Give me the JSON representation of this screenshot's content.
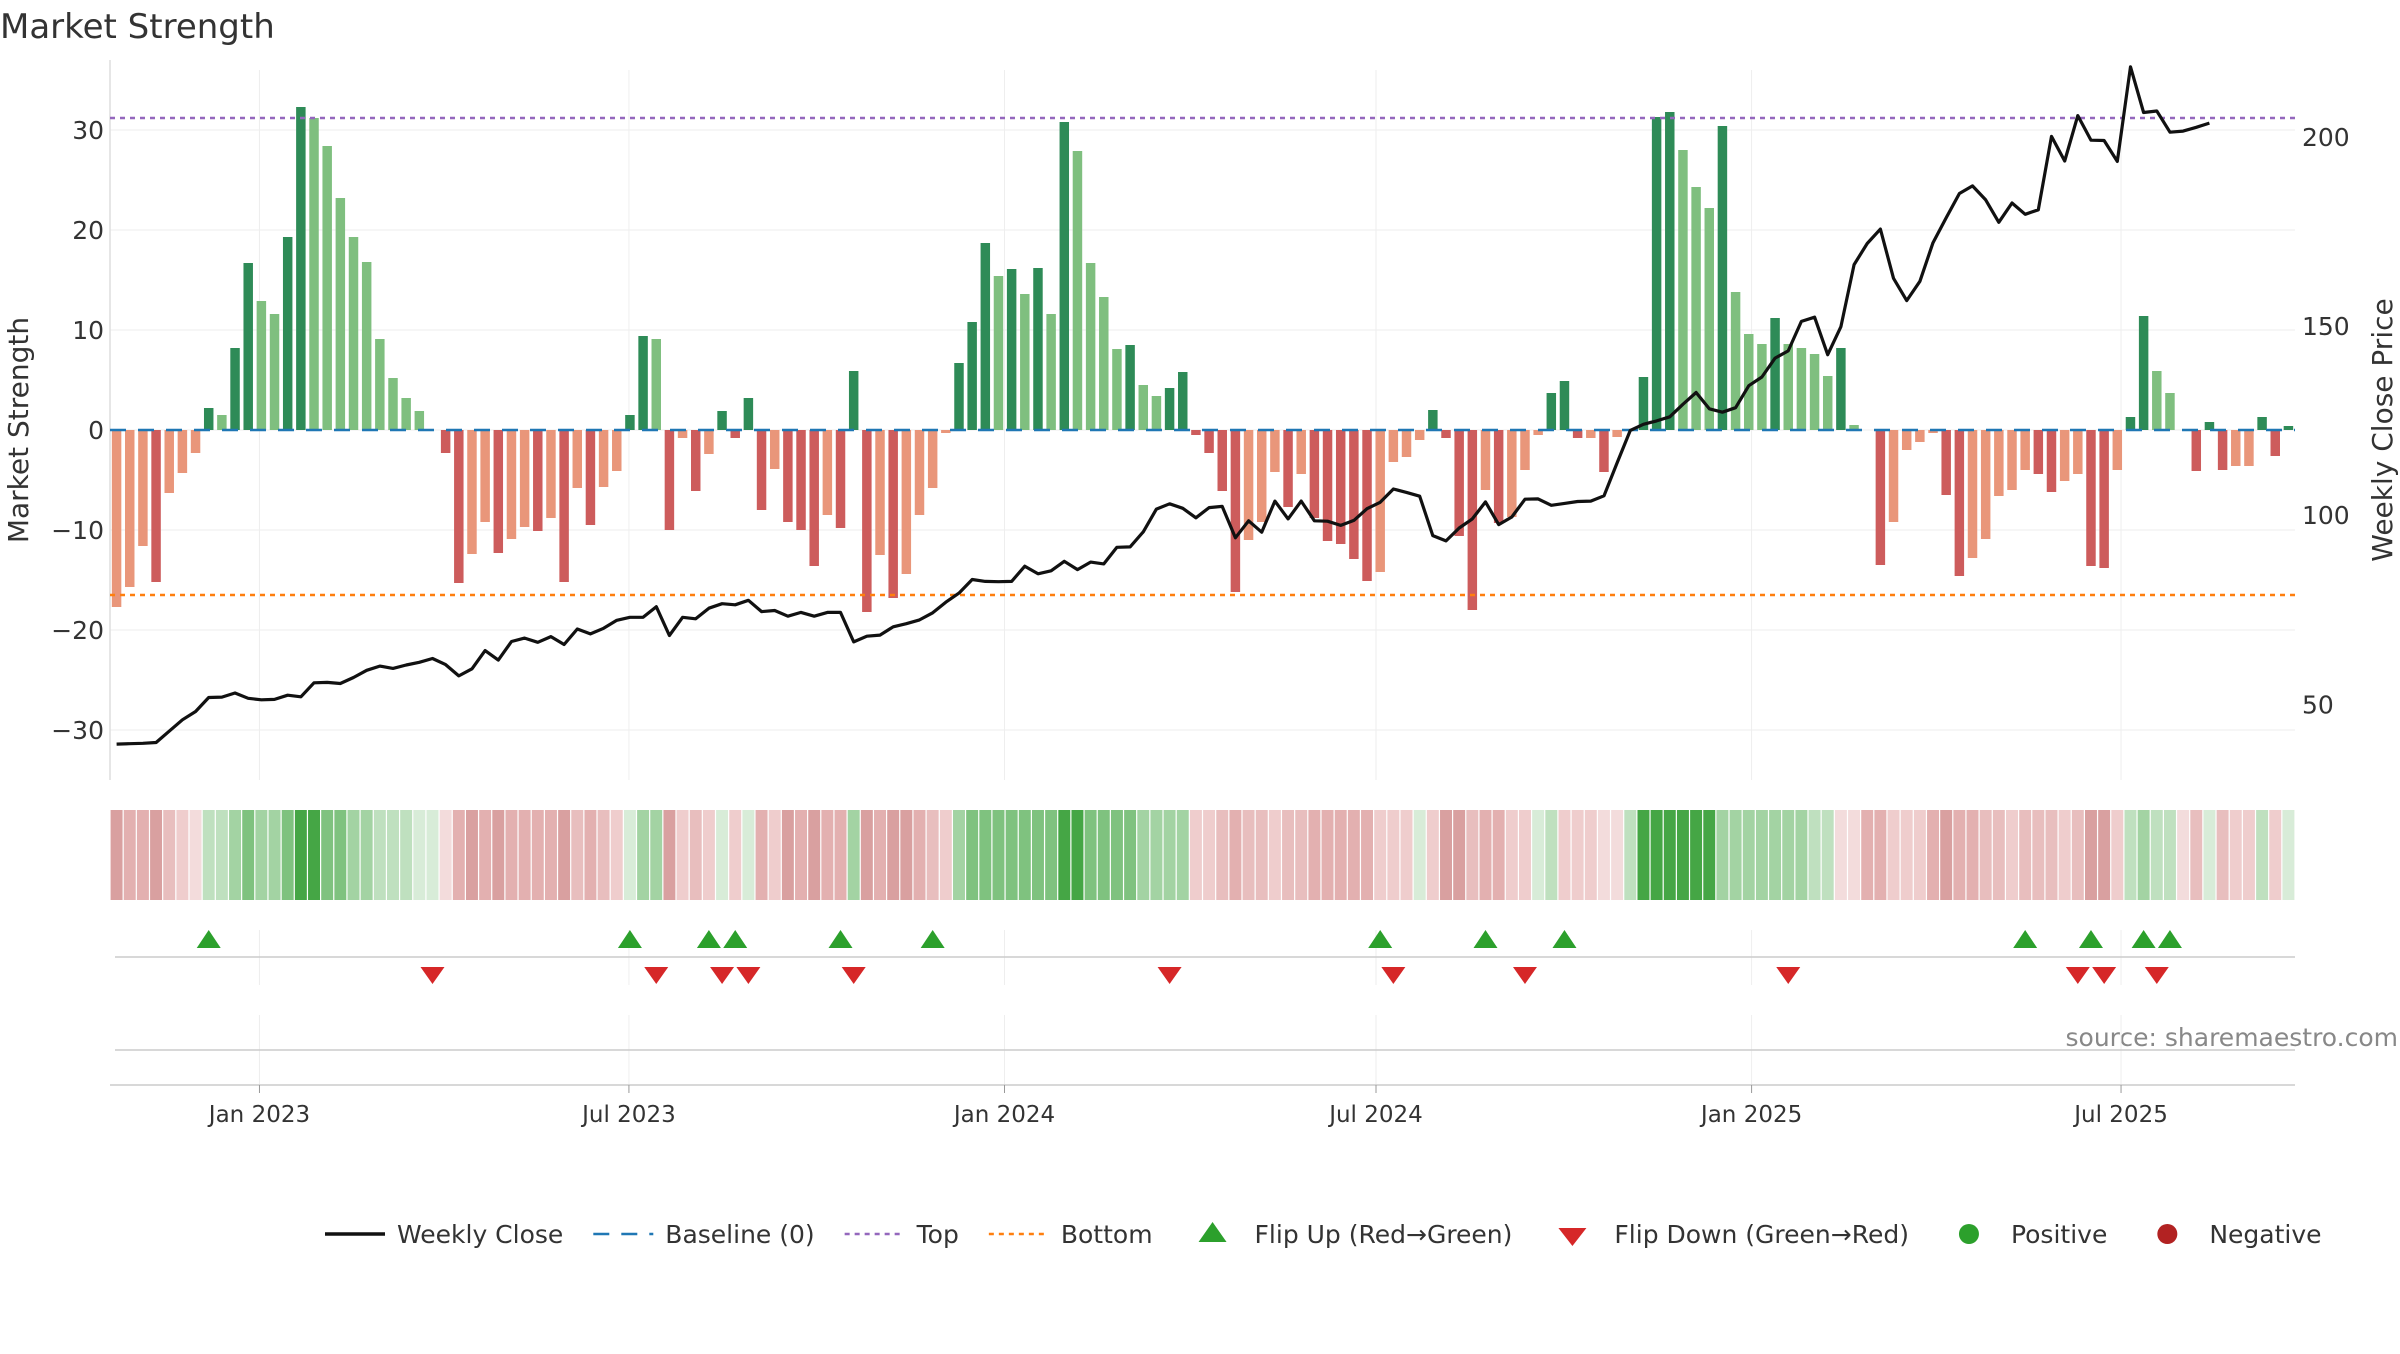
{
  "title": "Market Strength",
  "source": "source: sharemaestro.com",
  "chart_data": {
    "type": "bar",
    "title": "Market Strength",
    "ylabel_left": "Market Strength",
    "ylabel_right": "Weekly Close Price",
    "ylim_left": [
      -35,
      35
    ],
    "ylim_right": [
      30,
      215
    ],
    "yticks_left": [
      -30,
      -20,
      -10,
      0,
      10,
      20,
      30
    ],
    "yticks_right": [
      50,
      100,
      150,
      200
    ],
    "x_tick_labels": [
      "Jan 2023",
      "Jul 2023",
      "Jan 2024",
      "Jul 2024",
      "Jan 2025",
      "Jul 2025"
    ],
    "x_tick_dates": [
      "2023-01-01",
      "2023-07-01",
      "2024-01-01",
      "2024-07-01",
      "2025-01-01",
      "2025-07-01"
    ],
    "date_range": [
      "2022-10-23",
      "2025-09-21"
    ],
    "top_line": 31.2,
    "bottom_line": -16.5,
    "grid": true,
    "legend_position": "bottom",
    "colors": {
      "pos_strong": "#2e8b57",
      "pos_weak": "#7fbf7f",
      "neg_strong": "#cd5c5c",
      "neg_weak": "#e9967a",
      "close": "#111111",
      "baseline": "#1f77b4",
      "top": "#9467bd",
      "bottom": "#ff7f0e",
      "flip_up": "#2ca02c",
      "flip_down": "#d62728",
      "positive": "#2ca02c",
      "negative": "#b22222"
    },
    "strength": [
      -17.7,
      -15.7,
      -11.6,
      -15.2,
      -6.3,
      -4.3,
      -2.3,
      2.2,
      1.5,
      8.2,
      16.7,
      12.9,
      11.6,
      19.3,
      32.3,
      31.2,
      28.4,
      23.2,
      19.3,
      16.8,
      9.1,
      5.2,
      3.2,
      1.9,
      0,
      -2.3,
      -15.3,
      -12.4,
      -9.2,
      -12.3,
      -10.9,
      -9.7,
      -10.1,
      -8.8,
      -15.2,
      -5.8,
      -9.5,
      -5.7,
      -4.1,
      1.5,
      9.4,
      9.1,
      -10.0,
      -0.8,
      -6.1,
      -2.4,
      1.9,
      -0.8,
      3.2,
      -8.0,
      -3.9,
      -9.2,
      -10.0,
      -13.6,
      -8.5,
      -9.8,
      5.9,
      -18.2,
      -12.5,
      -16.8,
      -14.4,
      -8.5,
      -5.8,
      -0.3,
      6.7,
      10.8,
      18.7,
      15.4,
      16.1,
      13.6,
      16.2,
      11.6,
      30.8,
      27.9,
      16.7,
      13.3,
      8.1,
      8.5,
      4.5,
      3.4,
      4.2,
      5.8,
      -0.5,
      -2.3,
      -6.1,
      -16.2,
      -11.0,
      -9.2,
      -4.2,
      -7.7,
      -4.4,
      -8.8,
      -11.1,
      -11.4,
      -12.9,
      -15.1,
      -14.2,
      -3.2,
      -2.7,
      -1.0,
      2.0,
      -0.8,
      -10.6,
      -18.0,
      -6.0,
      -9.3,
      -8.7,
      -4.0,
      -0.5,
      3.7,
      4.9,
      -0.8,
      -0.8,
      -4.2,
      -0.7,
      0,
      5.3,
      31.3,
      31.8,
      28.0,
      24.3,
      22.2,
      30.4,
      13.8,
      9.6,
      8.6,
      11.2,
      8.6,
      8.2,
      7.6,
      5.4,
      8.2,
      0.5,
      0,
      -13.5,
      -9.2,
      -2.0,
      -1.2,
      -0.3,
      -6.5,
      -14.6,
      -12.8,
      -10.9,
      -6.6,
      -6.0,
      -4.0,
      -4.4,
      -6.2,
      -5.1,
      -4.4,
      -13.6,
      -13.8,
      -4.0,
      1.3,
      11.4,
      5.9,
      3.7,
      0,
      -4.1,
      0.8,
      -4.0,
      -3.6,
      -3.6,
      1.3,
      -2.6,
      0.4
    ],
    "weekly_close": [
      39.5,
      39.6,
      39.7,
      39.9,
      42.9,
      45.9,
      48.1,
      51.8,
      51.9,
      53.0,
      51.6,
      51.2,
      51.3,
      52.4,
      52.0,
      55.7,
      55.8,
      55.5,
      57.1,
      59.0,
      60.1,
      59.5,
      60.4,
      61.1,
      62.1,
      60.5,
      57.5,
      59.4,
      64.2,
      61.7,
      66.6,
      67.5,
      66.4,
      67.9,
      65.8,
      69.9,
      68.6,
      70.1,
      72.2,
      73.0,
      73.0,
      75.8,
      68.2,
      73.0,
      72.6,
      75.4,
      76.6,
      76.3,
      77.5,
      74.5,
      74.8,
      73.3,
      74.3,
      73.3,
      74.3,
      74.3,
      66.5,
      68.0,
      68.3,
      70.5,
      71.3,
      72.3,
      74.2,
      77.0,
      79.4,
      83.0,
      82.5,
      82.4,
      82.5,
      86.5,
      84.5,
      85.3,
      87.8,
      85.6,
      87.6,
      87.1,
      91.5,
      91.6,
      95.6,
      101.6,
      103.0,
      101.8,
      99.3,
      102.0,
      102.3,
      94.0,
      98.5,
      95.5,
      103.7,
      99.0,
      103.7,
      98.5,
      98.4,
      97.3,
      98.6,
      101.7,
      103.4,
      106.9,
      106.0,
      105.0,
      94.6,
      93.2,
      96.6,
      99.0,
      103.5,
      97.5,
      99.5,
      104.2,
      104.3,
      102.6,
      103.1,
      103.6,
      103.7,
      105.1,
      113.8,
      122.4,
      124.0,
      124.9,
      126.0,
      129.3,
      132.4,
      128.1,
      127.2,
      128.4,
      134.2,
      136.5,
      141.5,
      143.4,
      151.2,
      152.3,
      142.4,
      149.8,
      166.2,
      171.8,
      175.6,
      162.6,
      156.7,
      161.8,
      172.0,
      178.6,
      185.0,
      187.0,
      183.3,
      177.4,
      182.5,
      179.5,
      180.7,
      200.1,
      193.6,
      205.6,
      199.1,
      199.0,
      193.5,
      218.5,
      206.4,
      206.8,
      201.2,
      201.5,
      202.5,
      203.6
    ],
    "color_band": [
      0,
      1,
      1,
      0,
      2,
      3,
      4,
      6,
      6,
      7,
      8,
      7,
      7,
      8,
      9,
      9,
      8,
      8,
      7,
      7,
      6,
      6,
      6,
      5,
      5,
      4,
      1,
      0,
      1,
      0,
      1,
      1,
      1,
      1,
      0,
      2,
      1,
      2,
      3,
      5,
      7,
      7,
      0,
      3,
      2,
      3,
      5,
      3,
      5,
      1,
      3,
      0,
      1,
      0,
      1,
      1,
      7,
      0,
      1,
      0,
      0,
      1,
      2,
      3,
      7,
      8,
      8,
      8,
      8,
      8,
      8,
      8,
      9,
      9,
      8,
      8,
      8,
      8,
      7,
      7,
      7,
      7,
      3,
      3,
      2,
      1,
      2,
      2,
      3,
      2,
      2,
      1,
      1,
      1,
      1,
      1,
      3,
      3,
      3,
      5,
      3,
      0,
      0,
      2,
      1,
      1,
      3,
      3,
      5,
      6,
      3,
      3,
      3,
      4,
      4,
      6,
      9,
      9,
      9,
      9,
      9,
      9,
      7,
      7,
      7,
      7,
      7,
      7,
      7,
      6,
      6,
      4,
      4,
      1,
      1,
      3,
      3,
      3,
      1,
      0,
      1,
      1,
      2,
      2,
      3,
      2,
      2,
      2,
      3,
      2,
      0,
      0,
      3,
      6,
      7,
      6,
      6,
      4,
      2,
      5,
      2,
      3,
      3,
      6,
      3,
      5
    ],
    "flip_up_idx": [
      7,
      39,
      45,
      47,
      55,
      62,
      96,
      104,
      110,
      145,
      150,
      154,
      156
    ],
    "flip_down_idx": [
      24,
      41,
      46,
      48,
      56,
      80,
      97,
      107,
      127,
      149,
      151,
      155
    ]
  },
  "legend": [
    {
      "label": "Weekly Close",
      "marker": "line-solid"
    },
    {
      "label": "Baseline (0)",
      "marker": "line-dashed"
    },
    {
      "label": "Top",
      "marker": "line-dotted-top"
    },
    {
      "label": "Bottom",
      "marker": "line-dotted-bottom"
    },
    {
      "label": "Flip Up (Red→Green)",
      "marker": "triangle-up"
    },
    {
      "label": "Flip Down (Green→Red)",
      "marker": "triangle-down"
    },
    {
      "label": "Positive",
      "marker": "dot-positive"
    },
    {
      "label": "Negative",
      "marker": "dot-negative"
    }
  ]
}
